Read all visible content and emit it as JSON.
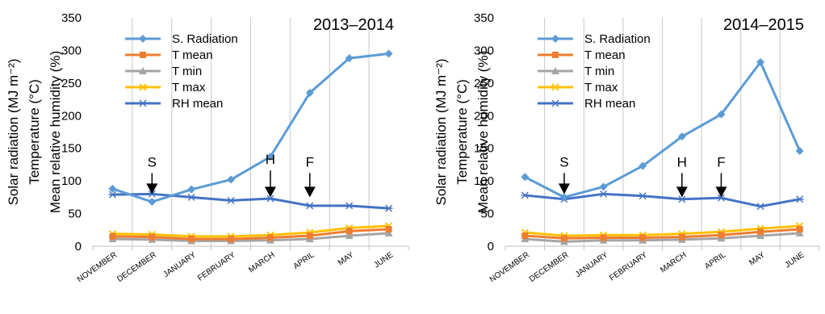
{
  "chart_data": [
    {
      "type": "line",
      "title": "2013–2014",
      "ylabel_lines": [
        "Solar radiation (MJ m⁻²)",
        "Temperature (°C)",
        "Mean relative humidity (%)"
      ],
      "categories": [
        "NOVEMBER",
        "DECEMBER",
        "JANUARY",
        "FEBRUARY",
        "MARCH",
        "APRIL",
        "MAY",
        "JUNE"
      ],
      "ylim": [
        0,
        350
      ],
      "yticks": [
        0,
        50,
        100,
        150,
        200,
        250,
        300,
        350
      ],
      "grid": "vertical",
      "legend_position": "top-left",
      "series": [
        {
          "name": "S. Radiation",
          "color": "#5B9BD5",
          "marker": "diamond",
          "values": [
            88,
            68,
            87,
            102,
            137,
            235,
            288,
            295
          ]
        },
        {
          "name": "T mean",
          "color": "#ED7D31",
          "marker": "square",
          "values": [
            15,
            14,
            11,
            11,
            13,
            16,
            23,
            26
          ]
        },
        {
          "name": "T min",
          "color": "#A5A5A5",
          "marker": "triangle",
          "values": [
            11,
            10,
            8,
            8,
            9,
            11,
            16,
            20
          ]
        },
        {
          "name": "T max",
          "color": "#FFC000",
          "marker": "x",
          "values": [
            19,
            18,
            15,
            15,
            17,
            21,
            28,
            31
          ]
        },
        {
          "name": "RH mean",
          "color": "#4472C4",
          "marker": "star",
          "values": [
            79,
            80,
            75,
            70,
            73,
            62,
            62,
            58
          ]
        }
      ],
      "annotations": [
        {
          "label": "S",
          "x_index": 1,
          "y_top": 112,
          "y_arrow": 80
        },
        {
          "label": "H",
          "x_index": 4,
          "y_top": 116,
          "y_arrow": 75
        },
        {
          "label": "F",
          "x_index": 5,
          "y_top": 112,
          "y_arrow": 75
        }
      ]
    },
    {
      "type": "line",
      "title": "2014–2015",
      "ylabel_lines": [
        "Solar radiation (MJ m⁻²)",
        "Temperature (°C)",
        "Mean relative humidity (%)"
      ],
      "categories": [
        "NOVEMBER",
        "DECEMBER",
        "JANUARY",
        "FEBRUARY",
        "MARCH",
        "APRIL",
        "MAY",
        "JUNE"
      ],
      "ylim": [
        0,
        350
      ],
      "yticks": [
        0,
        50,
        100,
        150,
        200,
        250,
        300,
        350
      ],
      "grid": "vertical",
      "legend_position": "top-left",
      "series": [
        {
          "name": "S. Radiation",
          "color": "#5B9BD5",
          "marker": "diamond",
          "values": [
            106,
            75,
            91,
            123,
            168,
            202,
            282,
            146
          ]
        },
        {
          "name": "T mean",
          "color": "#ED7D31",
          "marker": "square",
          "values": [
            16,
            12,
            13,
            13,
            14,
            17,
            22,
            26
          ]
        },
        {
          "name": "T min",
          "color": "#A5A5A5",
          "marker": "triangle",
          "values": [
            11,
            7,
            9,
            9,
            10,
            12,
            16,
            20
          ]
        },
        {
          "name": "T max",
          "color": "#FFC000",
          "marker": "x",
          "values": [
            21,
            16,
            17,
            17,
            19,
            22,
            27,
            31
          ]
        },
        {
          "name": "RH mean",
          "color": "#4472C4",
          "marker": "star",
          "values": [
            78,
            72,
            80,
            77,
            72,
            74,
            61,
            72
          ]
        }
      ],
      "annotations": [
        {
          "label": "S",
          "x_index": 1,
          "y_top": 112,
          "y_arrow": 80
        },
        {
          "label": "H",
          "x_index": 4,
          "y_top": 112,
          "y_arrow": 75
        },
        {
          "label": "F",
          "x_index": 5,
          "y_top": 112,
          "y_arrow": 75
        }
      ]
    }
  ]
}
